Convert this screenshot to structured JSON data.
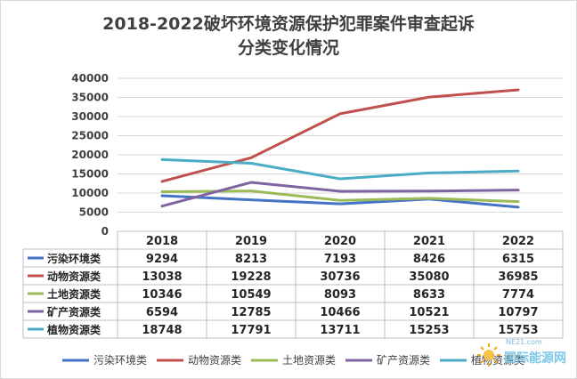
{
  "chart_data": {
    "type": "line",
    "title_line1": "2018-2022破坏环境资源保护犯罪案件审查起诉",
    "title_line2": "分类变化情况",
    "categories": [
      "2018",
      "2019",
      "2020",
      "2021",
      "2022"
    ],
    "ylim": [
      0,
      40000
    ],
    "yticks": [
      "0",
      "5000",
      "10000",
      "15000",
      "20000",
      "25000",
      "30000",
      "35000",
      "40000"
    ],
    "grid": true,
    "legend_position": "bottom",
    "data_table": true,
    "series": [
      {
        "name": "污染环境类",
        "color": "#4472c4",
        "values": [
          9294,
          8213,
          7193,
          8426,
          6315
        ]
      },
      {
        "name": "动物资源类",
        "color": "#c0504d",
        "values": [
          13038,
          19228,
          30736,
          35080,
          36985
        ]
      },
      {
        "name": "土地资源类",
        "color": "#9bbb59",
        "values": [
          10346,
          10549,
          8093,
          8633,
          7774
        ]
      },
      {
        "name": "矿产资源类",
        "color": "#8064a2",
        "values": [
          6594,
          12785,
          10466,
          10521,
          10797
        ]
      },
      {
        "name": "植物资源类",
        "color": "#4bacc6",
        "values": [
          18748,
          17791,
          13711,
          15253,
          15753
        ]
      }
    ]
  },
  "watermark": {
    "url": "NE21.com",
    "name": "国际能源网"
  }
}
